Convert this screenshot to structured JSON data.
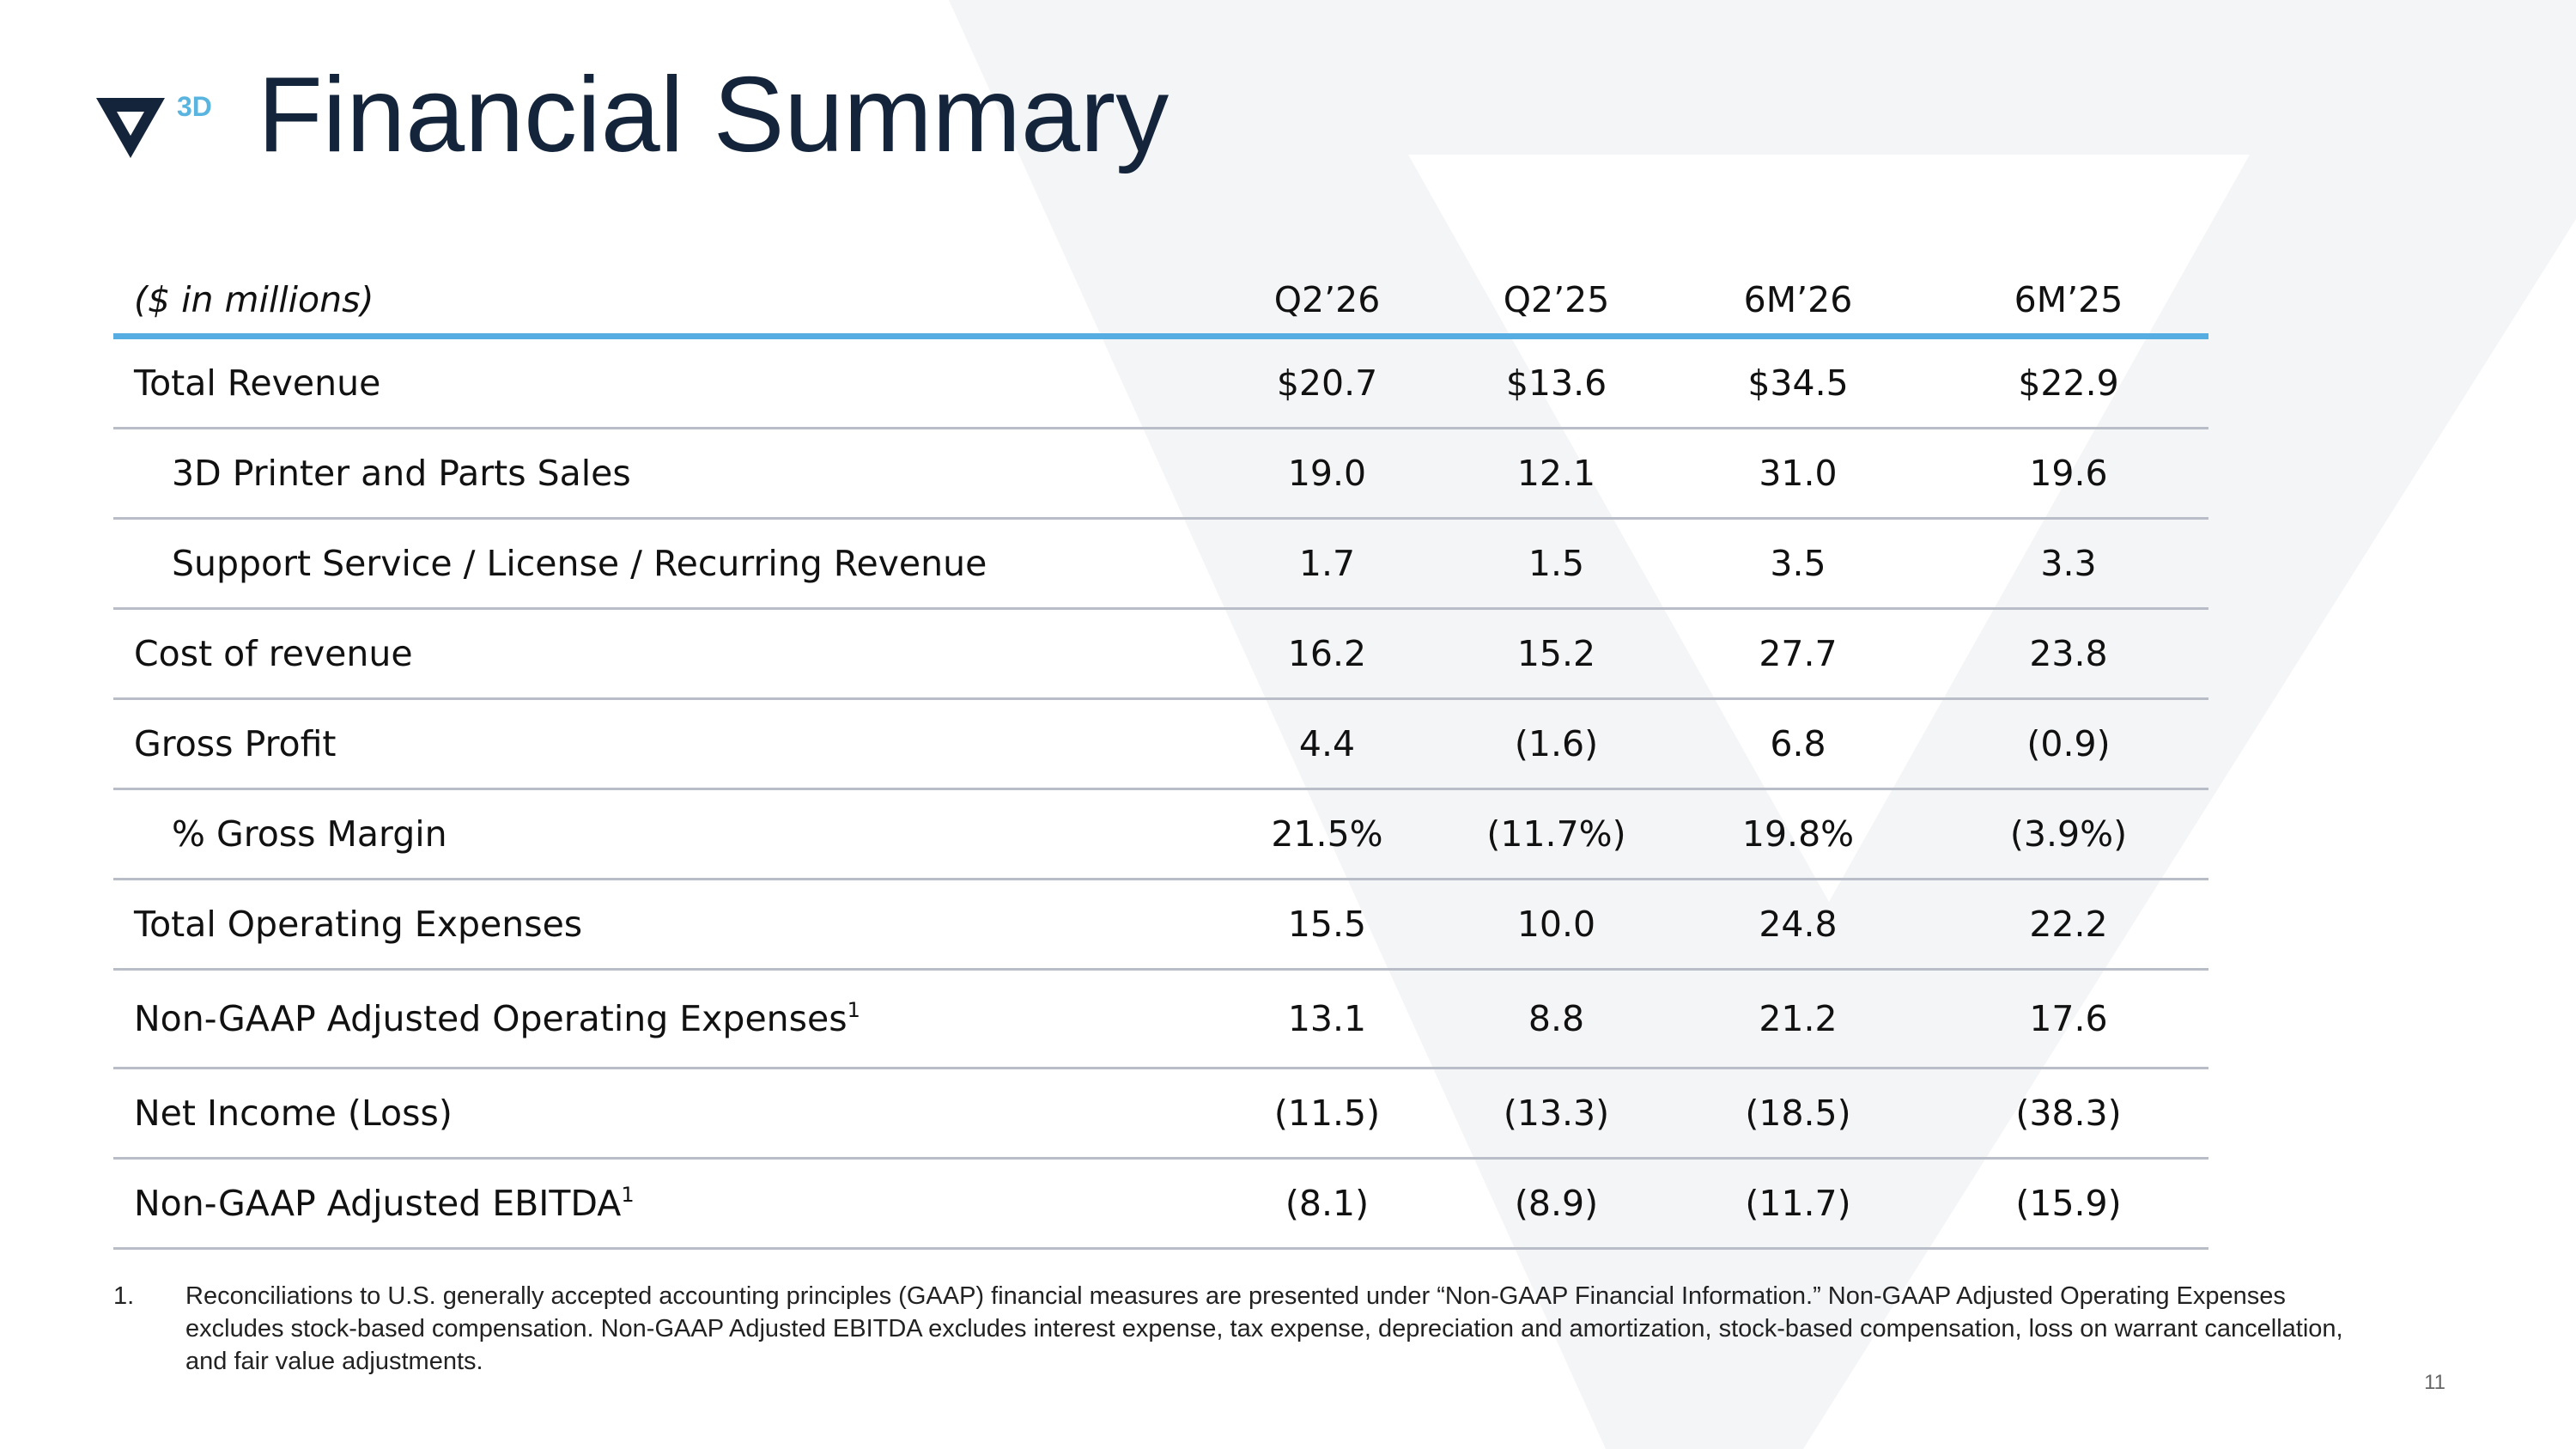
{
  "header": {
    "logo_text": "3D",
    "title": "Financial Summary"
  },
  "table": {
    "unit_label": "($ in millions)",
    "columns": [
      "Q2’26",
      "Q2’25",
      "6M’26",
      "6M’25"
    ],
    "rows": [
      {
        "label": "Total Revenue",
        "values": [
          "$20.7",
          "$13.6",
          "$34.5",
          "$22.9"
        ]
      },
      {
        "label": "3D Printer and Parts Sales",
        "values": [
          "19.0",
          "12.1",
          "31.0",
          "19.6"
        ]
      },
      {
        "label": "Support Service / License / Recurring Revenue",
        "values": [
          "1.7",
          "1.5",
          "3.5",
          "3.3"
        ]
      },
      {
        "label": "Cost of revenue",
        "values": [
          "16.2",
          "15.2",
          "27.7",
          "23.8"
        ]
      },
      {
        "label": "Gross Profit",
        "values": [
          "4.4",
          "(1.6)",
          "6.8",
          "(0.9)"
        ]
      },
      {
        "label": "% Gross Margin",
        "values": [
          "21.5%",
          "(11.7%)",
          "19.8%",
          "(3.9%)"
        ]
      },
      {
        "label": "Total Operating Expenses",
        "values": [
          "15.5",
          "10.0",
          "24.8",
          "22.2"
        ]
      },
      {
        "label": "Non-GAAP Adjusted Operating Expenses",
        "footnote_ref": "1",
        "values": [
          "13.1",
          "8.8",
          "21.2",
          "17.6"
        ]
      },
      {
        "label": "Net Income (Loss)",
        "values": [
          "(11.5)",
          "(13.3)",
          "(18.5)",
          "(38.3)"
        ]
      },
      {
        "label": "Non-GAAP Adjusted EBITDA",
        "footnote_ref": "1",
        "values": [
          "(8.1)",
          "(8.9)",
          "(11.7)",
          "(15.9)"
        ]
      }
    ]
  },
  "footnote": {
    "number": "1.",
    "text": "Reconciliations to U.S. generally accepted accounting principles (GAAP) financial measures are presented under “Non-GAAP Financial Information.”  Non-GAAP Adjusted Operating Expenses excludes stock-based compensation. Non-GAAP Adjusted EBITDA excludes interest expense, tax expense, depreciation and amortization, stock-based compensation, loss on warrant cancellation, and fair value adjustments."
  },
  "page_number": "11",
  "colors": {
    "title": "#14243a",
    "accent_blue": "#55ade2",
    "row_divider": "#b9bdc7",
    "watermark": "#f4f5f7"
  },
  "icons": {
    "logo": "velo3d-v-logo",
    "watermark": "large-v-watermark"
  }
}
